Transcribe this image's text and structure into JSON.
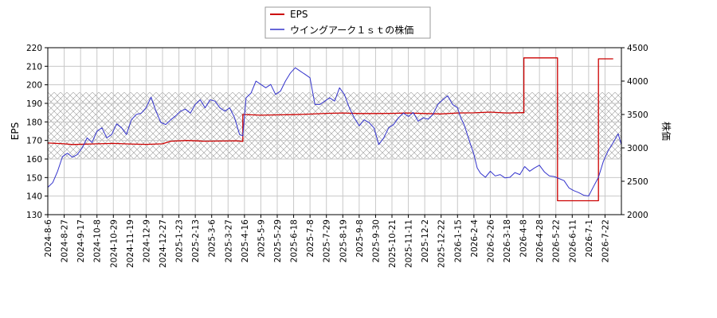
{
  "chart_data": {
    "type": "line",
    "legend_position": "top-center",
    "grid": true,
    "y_left": {
      "label": "EPS",
      "range": [
        130,
        220
      ],
      "ticks": [
        130,
        140,
        150,
        160,
        170,
        180,
        190,
        200,
        210,
        220
      ]
    },
    "y_right": {
      "label": "株価",
      "range": [
        2000,
        4500
      ],
      "ticks": [
        2000,
        2500,
        3000,
        3500,
        4000,
        4500
      ]
    },
    "x_ticks": [
      "2024-8-6",
      "2024-8-27",
      "2024-9-17",
      "2024-10-8",
      "2024-10-29",
      "2024-11-19",
      "2024-12-9",
      "2024-12-27",
      "2025-1-23",
      "2025-2-13",
      "2025-3-6",
      "2025-3-27",
      "2025-4-16",
      "2025-5-9",
      "2025-5-29",
      "2025-6-18",
      "2025-7-8",
      "2025-7-29",
      "2025-8-19",
      "2025-9-8",
      "2025-9-30",
      "2025-10-21",
      "2025-11-11",
      "2025-12-2",
      "2025-12-22",
      "2026-1-15",
      "2026-2-4",
      "2026-2-26",
      "2026-3-18",
      "2026-4-8",
      "2026-4-28",
      "2026-5-22",
      "2026-6-11",
      "2026-7-1",
      "2026-7-22"
    ],
    "band": {
      "from": 160,
      "to": 196,
      "pattern": "crosshatch",
      "axis": "left"
    },
    "series": [
      {
        "name": "EPS",
        "axis": "left",
        "color": "#cc0000",
        "points": [
          [
            0,
            168.6
          ],
          [
            1.0,
            168.2
          ],
          [
            1.5,
            167.8
          ],
          [
            3.0,
            168.2
          ],
          [
            4.0,
            168.4
          ],
          [
            5.0,
            168.1
          ],
          [
            6.0,
            167.9
          ],
          [
            7.0,
            168.2
          ],
          [
            7.5,
            169.6
          ],
          [
            8.5,
            170.0
          ],
          [
            9.5,
            169.6
          ],
          [
            10.5,
            169.7
          ],
          [
            11.5,
            169.8
          ],
          [
            11.9,
            169.5
          ],
          [
            11.9,
            184.0
          ],
          [
            13.0,
            183.6
          ],
          [
            14.0,
            183.8
          ],
          [
            15.0,
            183.9
          ],
          [
            16.0,
            184.2
          ],
          [
            17.0,
            184.6
          ],
          [
            18.0,
            184.8
          ],
          [
            19.0,
            184.5
          ],
          [
            20.0,
            184.5
          ],
          [
            21.0,
            184.6
          ],
          [
            22.0,
            184.8
          ],
          [
            23.0,
            184.5
          ],
          [
            24.0,
            184.3
          ],
          [
            25.0,
            184.8
          ],
          [
            26.0,
            184.9
          ],
          [
            27.0,
            185.3
          ],
          [
            28.0,
            184.8
          ],
          [
            29.0,
            185.0
          ],
          [
            29.05,
            185.0
          ],
          [
            29.05,
            214.5
          ],
          [
            31.1,
            214.5
          ],
          [
            31.1,
            137.5
          ],
          [
            33.6,
            137.5
          ],
          [
            33.6,
            214.0
          ],
          [
            34.5,
            214.0
          ]
        ]
      },
      {
        "name": "ウイングアーク１ｓｔの株価",
        "axis": "right",
        "color": "#3333cc",
        "points": [
          [
            0,
            2410
          ],
          [
            0.3,
            2480
          ],
          [
            0.6,
            2650
          ],
          [
            0.9,
            2870
          ],
          [
            1.2,
            2920
          ],
          [
            1.5,
            2860
          ],
          [
            1.8,
            2900
          ],
          [
            2.1,
            3000
          ],
          [
            2.4,
            3150
          ],
          [
            2.7,
            3080
          ],
          [
            3.0,
            3250
          ],
          [
            3.3,
            3300
          ],
          [
            3.6,
            3150
          ],
          [
            3.9,
            3200
          ],
          [
            4.2,
            3360
          ],
          [
            4.5,
            3300
          ],
          [
            4.8,
            3200
          ],
          [
            5.1,
            3420
          ],
          [
            5.4,
            3500
          ],
          [
            5.7,
            3520
          ],
          [
            6.0,
            3600
          ],
          [
            6.3,
            3760
          ],
          [
            6.6,
            3550
          ],
          [
            6.9,
            3380
          ],
          [
            7.2,
            3350
          ],
          [
            7.5,
            3420
          ],
          [
            7.8,
            3480
          ],
          [
            8.1,
            3550
          ],
          [
            8.4,
            3580
          ],
          [
            8.7,
            3520
          ],
          [
            9.0,
            3650
          ],
          [
            9.3,
            3720
          ],
          [
            9.6,
            3600
          ],
          [
            9.9,
            3720
          ],
          [
            10.2,
            3700
          ],
          [
            10.5,
            3600
          ],
          [
            10.8,
            3550
          ],
          [
            11.1,
            3600
          ],
          [
            11.4,
            3450
          ],
          [
            11.7,
            3200
          ],
          [
            11.9,
            3180
          ],
          [
            12.1,
            3750
          ],
          [
            12.4,
            3820
          ],
          [
            12.7,
            4000
          ],
          [
            13.0,
            3950
          ],
          [
            13.3,
            3900
          ],
          [
            13.6,
            3950
          ],
          [
            13.9,
            3800
          ],
          [
            14.2,
            3850
          ],
          [
            14.5,
            4000
          ],
          [
            14.8,
            4120
          ],
          [
            15.1,
            4200
          ],
          [
            15.4,
            4150
          ],
          [
            15.7,
            4100
          ],
          [
            16.0,
            4050
          ],
          [
            16.3,
            3650
          ],
          [
            16.6,
            3650
          ],
          [
            16.9,
            3700
          ],
          [
            17.2,
            3750
          ],
          [
            17.5,
            3700
          ],
          [
            17.8,
            3900
          ],
          [
            18.1,
            3800
          ],
          [
            18.4,
            3600
          ],
          [
            18.7,
            3450
          ],
          [
            19.0,
            3330
          ],
          [
            19.3,
            3420
          ],
          [
            19.6,
            3380
          ],
          [
            19.9,
            3300
          ],
          [
            20.2,
            3050
          ],
          [
            20.5,
            3150
          ],
          [
            20.8,
            3300
          ],
          [
            21.1,
            3350
          ],
          [
            21.4,
            3450
          ],
          [
            21.7,
            3520
          ],
          [
            22.0,
            3470
          ],
          [
            22.3,
            3530
          ],
          [
            22.6,
            3400
          ],
          [
            22.9,
            3450
          ],
          [
            23.2,
            3430
          ],
          [
            23.5,
            3500
          ],
          [
            23.8,
            3650
          ],
          [
            24.1,
            3720
          ],
          [
            24.4,
            3780
          ],
          [
            24.7,
            3650
          ],
          [
            25.0,
            3600
          ],
          [
            25.2,
            3450
          ],
          [
            25.4,
            3350
          ],
          [
            25.6,
            3200
          ],
          [
            25.8,
            3050
          ],
          [
            26.0,
            2900
          ],
          [
            26.2,
            2700
          ],
          [
            26.4,
            2620
          ],
          [
            26.7,
            2560
          ],
          [
            27.0,
            2650
          ],
          [
            27.3,
            2580
          ],
          [
            27.6,
            2600
          ],
          [
            27.9,
            2550
          ],
          [
            28.2,
            2560
          ],
          [
            28.5,
            2630
          ],
          [
            28.8,
            2600
          ],
          [
            29.1,
            2720
          ],
          [
            29.4,
            2650
          ],
          [
            29.7,
            2700
          ],
          [
            30.0,
            2740
          ],
          [
            30.3,
            2640
          ],
          [
            30.6,
            2580
          ],
          [
            30.9,
            2570
          ],
          [
            31.2,
            2540
          ],
          [
            31.5,
            2510
          ],
          [
            31.8,
            2400
          ],
          [
            32.1,
            2360
          ],
          [
            32.4,
            2330
          ],
          [
            32.7,
            2290
          ],
          [
            33.0,
            2280
          ],
          [
            33.3,
            2420
          ],
          [
            33.6,
            2560
          ],
          [
            33.9,
            2800
          ],
          [
            34.2,
            2960
          ],
          [
            34.5,
            3080
          ],
          [
            34.8,
            3210
          ],
          [
            35.0,
            3050
          ]
        ]
      }
    ]
  }
}
